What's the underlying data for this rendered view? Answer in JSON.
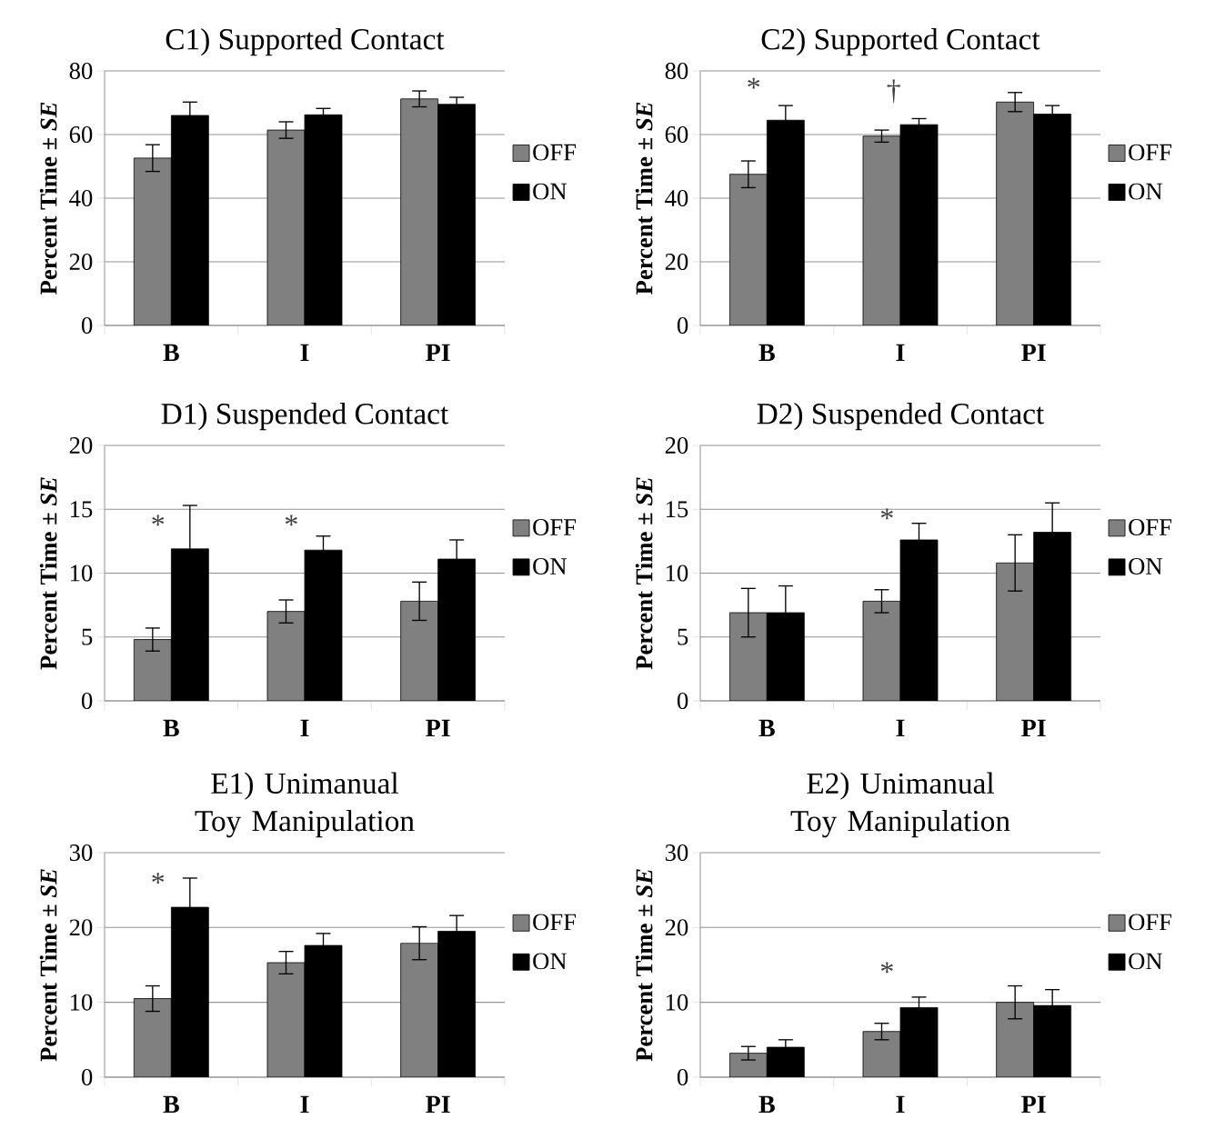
{
  "chart_data": [
    {
      "type": "bar",
      "title": "C1) Supported Contact",
      "ylabel": "Percent Time ± *SE*",
      "categories": [
        "B",
        "I",
        "PI"
      ],
      "ylim": [
        0,
        80
      ],
      "yticks": [
        0,
        20,
        40,
        60,
        80
      ],
      "grid": "y",
      "legend": "right",
      "series": [
        {
          "name": "OFF",
          "color": "#808080",
          "values": [
            52.6,
            61.4,
            71.2
          ],
          "errors": [
            4.2,
            2.6,
            2.5
          ]
        },
        {
          "name": "ON",
          "color": "#000000",
          "values": [
            66,
            66.2,
            69.5
          ],
          "errors": [
            4.2,
            2,
            2.2
          ]
        }
      ]
    },
    {
      "type": "bar",
      "title": "C2) Supported Contact",
      "ylabel": "Percent Time ± *SE*",
      "categories": [
        "B",
        "I",
        "PI"
      ],
      "ylim": [
        0,
        80
      ],
      "yticks": [
        0,
        20,
        40,
        60,
        80
      ],
      "grid": "y",
      "legend": "right",
      "series": [
        {
          "name": "OFF",
          "color": "#808080",
          "values": [
            47.5,
            59.5,
            70.2
          ],
          "errors": [
            4.2,
            1.9,
            3
          ]
        },
        {
          "name": "ON",
          "color": "#000000",
          "values": [
            64.5,
            63.1,
            66.4
          ],
          "errors": [
            4.6,
            1.9,
            2.7
          ]
        }
      ],
      "annotations": [
        "*",
        "†"
      ]
    },
    {
      "type": "bar",
      "title": "D1) Suspended Contact",
      "ylabel": "Percent Time ± *SE*",
      "categories": [
        "B",
        "I",
        "PI"
      ],
      "ylim": [
        0,
        20
      ],
      "yticks": [
        0,
        5,
        10,
        15,
        20
      ],
      "grid": "y",
      "legend": "right",
      "series": [
        {
          "name": "OFF",
          "color": "#808080",
          "values": [
            4.8,
            7,
            7.8
          ],
          "errors": [
            0.9,
            0.9,
            1.5
          ]
        },
        {
          "name": "ON",
          "color": "#000000",
          "values": [
            11.9,
            11.8,
            11.1
          ],
          "errors": [
            3.4,
            1.1,
            1.5
          ]
        }
      ],
      "annotations": [
        "*",
        "*"
      ]
    },
    {
      "type": "bar",
      "title": "D2) Suspended Contact",
      "ylabel": "Percent Time ± *SE*",
      "categories": [
        "B",
        "I",
        "PI"
      ],
      "ylim": [
        0,
        20
      ],
      "yticks": [
        0,
        5,
        10,
        15,
        20
      ],
      "grid": "y",
      "legend": "right",
      "series": [
        {
          "name": "OFF",
          "color": "#808080",
          "values": [
            6.9,
            7.8,
            10.8
          ],
          "errors": [
            1.9,
            0.9,
            2.2
          ]
        },
        {
          "name": "ON",
          "color": "#000000",
          "values": [
            6.9,
            12.6,
            13.2
          ],
          "errors": [
            2.1,
            1.3,
            2.3
          ]
        }
      ],
      "annotations": [
        "*"
      ]
    },
    {
      "type": "bar",
      "title": "E1) Unimanual Toy Manipulation",
      "ylabel": "Percent Time ± *SE*",
      "categories": [
        "B",
        "I",
        "PI"
      ],
      "ylim": [
        0,
        30
      ],
      "yticks": [
        0,
        10,
        20,
        30
      ],
      "grid": "y",
      "legend": "right",
      "series": [
        {
          "name": "OFF",
          "color": "#808080",
          "values": [
            10.5,
            15.3,
            17.9
          ],
          "errors": [
            1.7,
            1.5,
            2.2
          ]
        },
        {
          "name": "ON",
          "color": "#000000",
          "values": [
            22.7,
            17.6,
            19.5
          ],
          "errors": [
            3.9,
            1.6,
            2.1
          ]
        }
      ],
      "annotations": [
        "*"
      ]
    },
    {
      "type": "bar",
      "title": "E2) Unimanual Toy Manipulation",
      "ylabel": "Percent Time ± *SE*",
      "categories": [
        "B",
        "I",
        "PI"
      ],
      "ylim": [
        0,
        30
      ],
      "yticks": [
        0,
        10,
        20,
        30
      ],
      "grid": "y",
      "legend": "right",
      "series": [
        {
          "name": "OFF",
          "color": "#808080",
          "values": [
            3.2,
            6.1,
            10
          ],
          "errors": [
            0.9,
            1.1,
            2.2
          ]
        },
        {
          "name": "ON",
          "color": "#000000",
          "values": [
            4,
            9.3,
            9.6
          ],
          "errors": [
            1,
            1.4,
            2.1
          ]
        }
      ],
      "annotations": [
        "*"
      ]
    }
  ]
}
